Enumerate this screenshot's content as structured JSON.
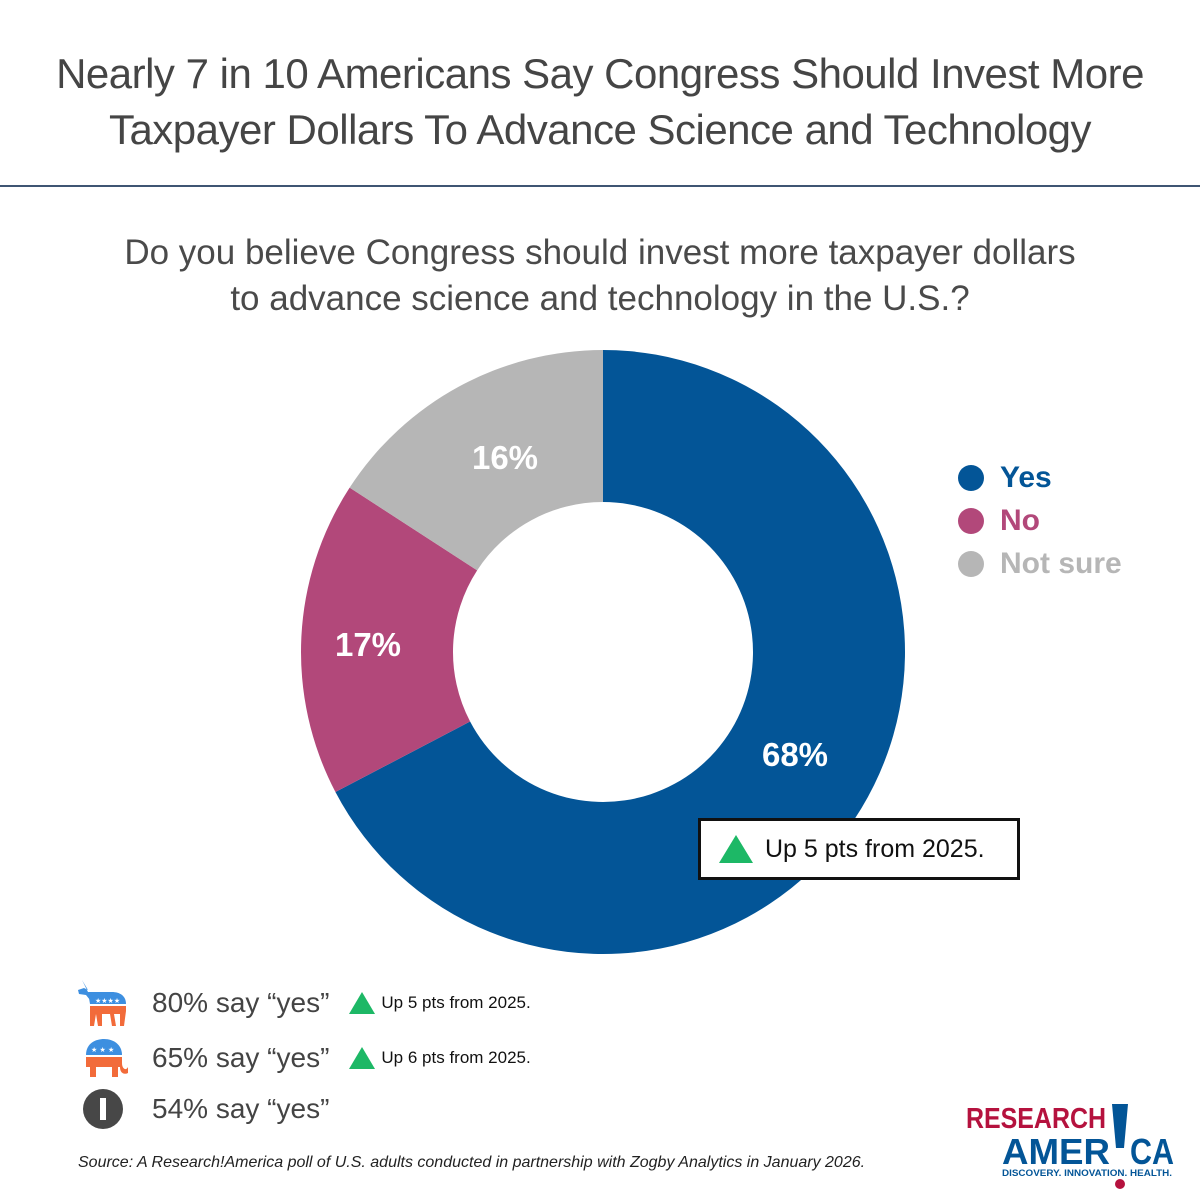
{
  "header": {
    "title_line1": "Nearly 7 in 10 Americans Say Congress Should Invest More",
    "title_line2": "Taxpayer Dollars To Advance Science and Technology"
  },
  "question": {
    "line1": "Do you believe Congress should invest more taxpayer dollars",
    "line2": "to advance science and technology in the U.S.?"
  },
  "chart_data": {
    "type": "pie",
    "subtype": "donut",
    "title": "Do you believe Congress should invest more taxpayer dollars to advance science and technology in the U.S.?",
    "categories": [
      "Yes",
      "No",
      "Not sure"
    ],
    "values": [
      68,
      17,
      16
    ],
    "labels": [
      "68%",
      "17%",
      "16%"
    ],
    "colors": [
      "#035597",
      "#b2487a",
      "#b6b6b6"
    ],
    "legend_position": "right",
    "annotation": "Up 5 pts from 2025."
  },
  "legend": {
    "items": [
      {
        "label": "Yes",
        "color": "#035597"
      },
      {
        "label": "No",
        "color": "#b2487a"
      },
      {
        "label": "Not sure",
        "color": "#b6b6b6"
      }
    ]
  },
  "callout": {
    "icon": "up-triangle-icon",
    "text": "Up 5 pts from 2025.",
    "color": "#1db866"
  },
  "party_breakdown": [
    {
      "party": "Democrats",
      "icon": "donkey-icon",
      "text": "80% say “yes”",
      "change": "Up 5 pts from 2025."
    },
    {
      "party": "Republicans",
      "icon": "elephant-icon",
      "text": "65% say “yes”",
      "change": "Up 6 pts from 2025."
    },
    {
      "party": "Independents",
      "icon": "independent-icon",
      "text": "54% say “yes”",
      "change": null
    }
  ],
  "footer": {
    "source": "Source: A Research!America poll of U.S. adults conducted in partnership with Zogby Analytics in January 2026."
  },
  "logo": {
    "line1": "RESEARCH",
    "line2a": "AMER",
    "line2b": "CA",
    "tagline": "DISCOVERY. INNOVATION. HEALTH.",
    "red": "#b5123e",
    "blue": "#035597"
  }
}
